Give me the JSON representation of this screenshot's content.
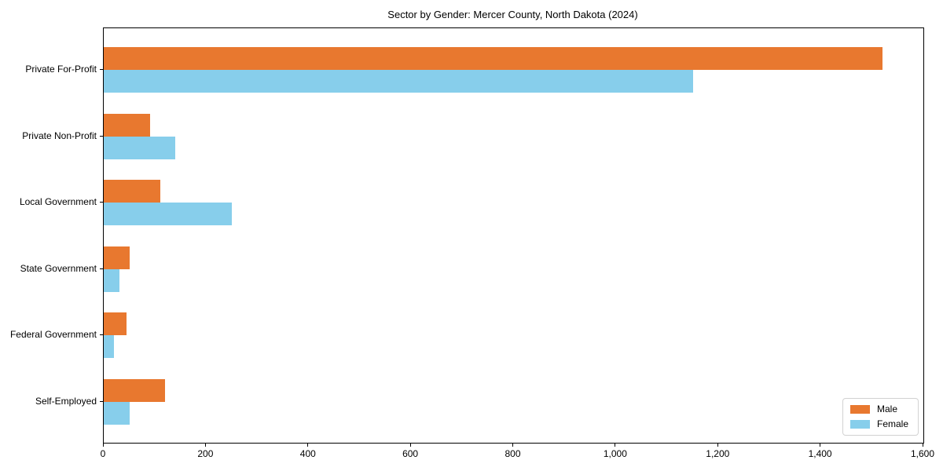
{
  "title": "Sector by Gender: Mercer County, North Dakota (2024)",
  "chart_data": {
    "type": "bar",
    "orientation": "horizontal",
    "title": "Sector by Gender: Mercer County, North Dakota (2024)",
    "categories": [
      "Private For-Profit",
      "Private Non-Profit",
      "Local Government",
      "State Government",
      "Federal Government",
      "Self-Employed"
    ],
    "series": [
      {
        "name": "Male",
        "color": "#E8782F",
        "values": [
          1520,
          90,
          110,
          50,
          45,
          120
        ]
      },
      {
        "name": "Female",
        "color": "#87CEEB",
        "values": [
          1150,
          140,
          250,
          30,
          20,
          50
        ]
      }
    ],
    "xlabel": "",
    "ylabel": "",
    "xlim": [
      0,
      1600
    ],
    "xticks": [
      0,
      200,
      400,
      600,
      800,
      1000,
      1200,
      1400,
      1600
    ],
    "xtick_labels": [
      "0",
      "200",
      "400",
      "600",
      "800",
      "1,000",
      "1,200",
      "1,400",
      "1,600"
    ],
    "grid": false,
    "legend_position": "lower right",
    "plot_border_color": "#000000",
    "background_color": "#ffffff"
  }
}
